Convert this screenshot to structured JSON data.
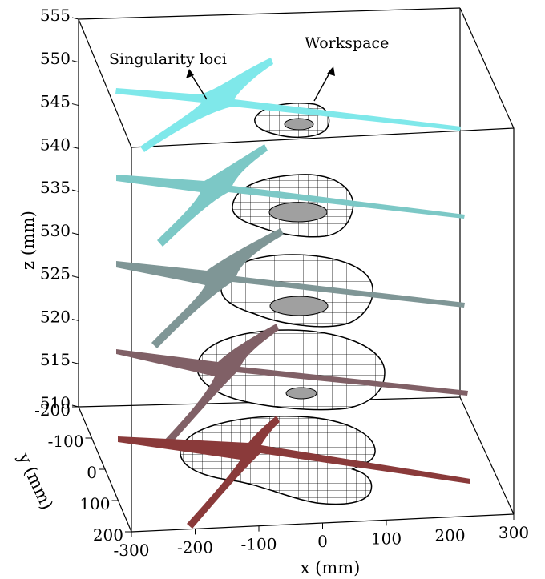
{
  "chart_data": {
    "type": "3d-surface-slices",
    "xlabel": "x (mm)",
    "ylabel": "y (mm)",
    "zlabel": "z (mm)",
    "xlim": [
      -300,
      300
    ],
    "ylim": [
      -200,
      200
    ],
    "zlim": [
      510,
      555
    ],
    "x_ticks": [
      "-300",
      "-200",
      "-100",
      "0",
      "100",
      "200",
      "300"
    ],
    "y_ticks": [
      "-200",
      "-100",
      "0",
      "100",
      "200"
    ],
    "z_ticks": [
      "510",
      "515",
      "520",
      "525",
      "530",
      "535",
      "540",
      "545",
      "550",
      "555"
    ],
    "annotations": [
      {
        "text": "Singularity loci"
      },
      {
        "text": "Workspace"
      }
    ],
    "slices": [
      {
        "z": 543,
        "locus_color": "#7fe8ea"
      },
      {
        "z": 532,
        "locus_color": "#7cc8c6"
      },
      {
        "z": 521,
        "locus_color": "#7f9696"
      },
      {
        "z": 513,
        "locus_color": "#806066"
      },
      {
        "z": 505,
        "locus_color": "#8a3a3a"
      }
    ]
  }
}
